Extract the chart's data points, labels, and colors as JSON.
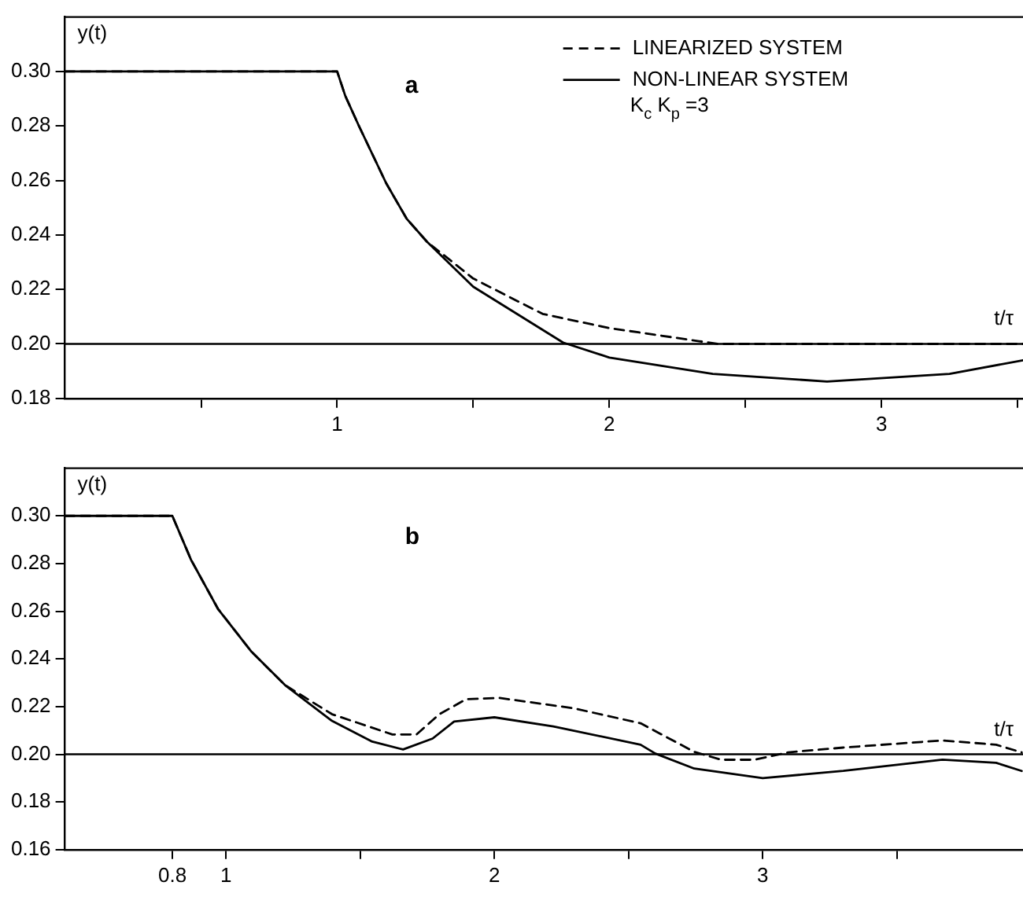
{
  "chart_data": [
    {
      "type": "line",
      "xlabel": "t/τ",
      "ylabel": "y(t)",
      "legend": "top right",
      "marker": "none",
      "grid": false,
      "annotations": [
        "a",
        "K$_{c}$ K$_{p}$ =3"
      ],
      "xlim": [
        0,
        3.52
      ],
      "ylim": [
        0.18,
        0.32
      ],
      "xticks": [
        {
          "value": 0.5,
          "label": null
        },
        1,
        {
          "value": 1.5,
          "label": null
        },
        2,
        {
          "value": 2.5,
          "label": null
        },
        3,
        {
          "value": 3.5,
          "label": null
        }
      ],
      "yticks": [
        {
          "value": 0.18,
          "label": "0.18"
        },
        {
          "value": 0.2,
          "label": "0.20"
        },
        {
          "value": 0.22,
          "label": "0.22"
        },
        {
          "value": 0.24,
          "label": "0.24"
        },
        {
          "value": 0.26,
          "label": "0.26"
        },
        {
          "value": 0.28,
          "label": "0.28"
        },
        {
          "value": 0.3,
          "label": "0.30"
        }
      ],
      "ref_lines": [
        {
          "axis": "y",
          "value": 0.2,
          "label": null
        }
      ],
      "series": [
        {
          "name": "LINEARIZED SYSTEM",
          "color": "#000000",
          "line_style": "dashed",
          "x": [
            0,
            1,
            1.03,
            1.08,
            1.18,
            1.255,
            1.33,
            1.5,
            1.755,
            2.0,
            2.33,
            2.4,
            3.52
          ],
          "values": [
            0.3,
            0.3,
            0.291,
            0.28,
            0.259,
            0.246,
            0.2375,
            0.224,
            0.211,
            0.2058,
            0.201,
            0.2,
            0.2
          ]
        },
        {
          "name": "NON-LINEAR SYSTEM",
          "color": "#000000",
          "line_style": "solid",
          "x": [
            0,
            1,
            1.03,
            1.08,
            1.18,
            1.255,
            1.33,
            1.5,
            1.83,
            2.0,
            2.38,
            2.8,
            3.25,
            3.52
          ],
          "values": [
            0.3,
            0.3,
            0.291,
            0.28,
            0.259,
            0.246,
            0.2375,
            0.221,
            0.2005,
            0.195,
            0.189,
            0.1862,
            0.189,
            0.194
          ]
        }
      ]
    },
    {
      "type": "line",
      "xlabel": "t/τ",
      "ylabel": "y(t)",
      "legend": false,
      "marker": "none",
      "grid": false,
      "annotations": [
        "b"
      ],
      "xlim": [
        0.4,
        3.97
      ],
      "ylim": [
        0.16,
        0.32
      ],
      "xticks": [
        0.8,
        1,
        {
          "value": 1.5,
          "label": null
        },
        2,
        {
          "value": 2.5,
          "label": null
        },
        3,
        {
          "value": 3.5,
          "label": null
        }
      ],
      "yticks": [
        {
          "value": 0.16,
          "label": "0.16"
        },
        {
          "value": 0.18,
          "label": "0.18"
        },
        {
          "value": 0.2,
          "label": "0.20"
        },
        {
          "value": 0.22,
          "label": "0.22"
        },
        {
          "value": 0.24,
          "label": "0.24"
        },
        {
          "value": 0.26,
          "label": "0.26"
        },
        {
          "value": 0.28,
          "label": "0.28"
        },
        {
          "value": 0.3,
          "label": "0.30"
        }
      ],
      "ref_lines": [
        {
          "axis": "y",
          "value": 0.2,
          "label": null
        }
      ],
      "series": [
        {
          "color": "#000000",
          "line_style": "dashed",
          "x": [
            0.4,
            0.8,
            0.87,
            0.97,
            1.095,
            1.22,
            1.395,
            1.62,
            1.71,
            1.795,
            1.895,
            2.02,
            2.295,
            2.545,
            2.745,
            2.845,
            2.97,
            3.095,
            3.3,
            3.67,
            3.87,
            3.965
          ],
          "values": [
            0.3,
            0.3,
            0.2815,
            0.261,
            0.243,
            0.229,
            0.2168,
            0.2083,
            0.2083,
            0.2168,
            0.2231,
            0.2236,
            0.2193,
            0.213,
            0.201,
            0.1977,
            0.1977,
            0.2008,
            0.2028,
            0.2058,
            0.204,
            0.2008
          ]
        },
        {
          "color": "#000000",
          "line_style": "solid",
          "x": [
            0.4,
            0.8,
            0.87,
            0.97,
            1.095,
            1.22,
            1.395,
            1.545,
            1.66,
            1.77,
            1.85,
            2.0,
            2.22,
            2.545,
            2.6,
            2.745,
            3.0,
            3.3,
            3.67,
            3.87,
            3.965
          ],
          "values": [
            0.3,
            0.3,
            0.2815,
            0.261,
            0.243,
            0.229,
            0.214,
            0.2053,
            0.202,
            0.2066,
            0.2137,
            0.2155,
            0.2117,
            0.204,
            0.2003,
            0.194,
            0.19,
            0.193,
            0.1977,
            0.1964,
            0.193
          ]
        }
      ]
    }
  ]
}
